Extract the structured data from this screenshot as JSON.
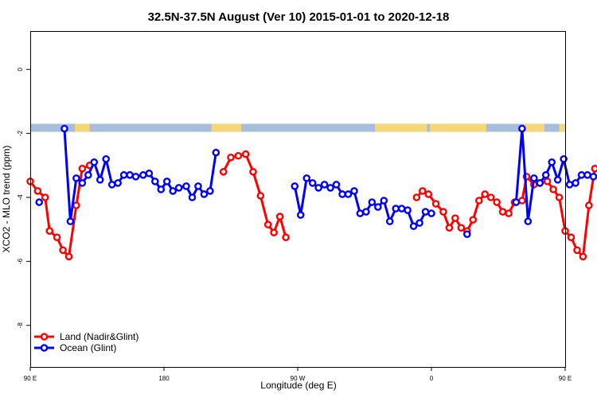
{
  "chart_data": {
    "type": "line",
    "title": "32.5N-37.5N August (Ver 10)   2015-01-01 to 2020-12-18",
    "xlabel": "Longitude (deg E)",
    "ylabel": "XCO2 - MLO trend (ppm)",
    "xlim": [
      90,
      450
    ],
    "ylim": [
      -9.3,
      1.2
    ],
    "x_ticks": [
      {
        "value": 90,
        "label": "90 E"
      },
      {
        "value": 180,
        "label": "180"
      },
      {
        "value": 270,
        "label": "90 W"
      },
      {
        "value": 360,
        "label": "0"
      },
      {
        "value": 450,
        "label": "90 E"
      },
      {
        "value": 540,
        "label": "180"
      }
    ],
    "y_ticks": [
      {
        "value": 0,
        "label": "0"
      },
      {
        "value": -2,
        "label": "-2"
      },
      {
        "value": -4,
        "label": "-4"
      },
      {
        "value": -6,
        "label": "-6"
      },
      {
        "value": -8,
        "label": "-8"
      }
    ],
    "land_band": {
      "y_range": [
        -1.95,
        -1.7
      ],
      "ocean_color": "#a6bddb",
      "land_color": "#f5d77a",
      "land_segments": [
        [
          120,
          130
        ],
        [
          212,
          232
        ],
        [
          322,
          357
        ],
        [
          359,
          397
        ],
        [
          422,
          436
        ],
        [
          446,
          455
        ]
      ]
    },
    "legend": {
      "position": "bottom-left"
    },
    "series": [
      {
        "name": "Land (Nadir&Glint)",
        "color": "#ff0000",
        "segments": [
          [
            [
              90,
              -3.5
            ],
            [
              95,
              -3.8
            ],
            [
              100,
              -4.0
            ],
            [
              103,
              -5.05
            ],
            [
              108,
              -5.25
            ],
            [
              112,
              -5.65
            ],
            [
              116,
              -5.85
            ],
            [
              121,
              -4.25
            ],
            [
              125,
              -3.1
            ],
            [
              130,
              -3.0
            ]
          ],
          [
            [
              220,
              -3.2
            ],
            [
              225,
              -2.75
            ],
            [
              230,
              -2.7
            ],
            [
              235,
              -2.65
            ],
            [
              240,
              -3.2
            ],
            [
              245,
              -3.95
            ],
            [
              250,
              -4.85
            ],
            [
              254,
              -5.1
            ],
            [
              258,
              -4.6
            ],
            [
              262,
              -5.25
            ]
          ],
          [
            [
              350,
              -4.0
            ],
            [
              354,
              -3.8
            ],
            [
              358,
              -3.9
            ],
            [
              363,
              -4.2
            ],
            [
              368,
              -4.45
            ],
            [
              372,
              -4.95
            ],
            [
              376,
              -4.65
            ],
            [
              380,
              -4.95
            ],
            [
              384,
              -5.05
            ],
            [
              388,
              -4.7
            ],
            [
              392,
              -4.1
            ],
            [
              396,
              -3.9
            ],
            [
              400,
              -4.0
            ],
            [
              404,
              -4.15
            ],
            [
              408,
              -4.45
            ],
            [
              412,
              -4.5
            ],
            [
              416,
              -4.15
            ],
            [
              421,
              -4.1
            ],
            [
              424,
              -3.35
            ],
            [
              429,
              -3.6
            ],
            [
              433,
              -3.55
            ],
            [
              438,
              -3.5
            ],
            [
              442,
              -3.75
            ],
            [
              446,
              -4.0
            ],
            [
              450,
              -5.05
            ],
            [
              454,
              -5.25
            ],
            [
              458,
              -5.65
            ],
            [
              462,
              -5.85
            ],
            [
              466,
              -4.25
            ],
            [
              470,
              -3.1
            ],
            [
              474,
              -3.0
            ]
          ]
        ]
      },
      {
        "name": "Ocean (Glint)",
        "color": "#0000ff",
        "segments": [
          [
            [
              96,
              -4.15
            ]
          ],
          [
            [
              113,
              -1.85
            ],
            [
              117,
              -4.75
            ],
            [
              121,
              -3.4
            ],
            [
              125,
              -3.55
            ],
            [
              129,
              -3.3
            ],
            [
              133,
              -2.9
            ],
            [
              137,
              -3.45
            ],
            [
              141,
              -2.8
            ],
            [
              145,
              -3.6
            ],
            [
              149,
              -3.55
            ],
            [
              153,
              -3.3
            ],
            [
              157,
              -3.3
            ],
            [
              161,
              -3.35
            ],
            [
              166,
              -3.3
            ],
            [
              170,
              -3.25
            ],
            [
              174,
              -3.5
            ],
            [
              178,
              -3.75
            ],
            [
              182,
              -3.5
            ],
            [
              186,
              -3.8
            ],
            [
              190,
              -3.7
            ],
            [
              195,
              -3.65
            ],
            [
              199,
              -4.0
            ],
            [
              203,
              -3.65
            ],
            [
              207,
              -3.9
            ],
            [
              211,
              -3.8
            ],
            [
              215,
              -2.6
            ]
          ],
          [
            [
              268,
              -3.65
            ],
            [
              272,
              -4.55
            ],
            [
              276,
              -3.4
            ],
            [
              280,
              -3.55
            ],
            [
              284,
              -3.7
            ],
            [
              288,
              -3.6
            ],
            [
              292,
              -3.7
            ],
            [
              296,
              -3.6
            ],
            [
              300,
              -3.9
            ],
            [
              304,
              -3.9
            ],
            [
              308,
              -3.8
            ],
            [
              312,
              -4.5
            ],
            [
              316,
              -4.45
            ],
            [
              320,
              -4.15
            ],
            [
              324,
              -4.3
            ],
            [
              328,
              -4.1
            ],
            [
              332,
              -4.75
            ],
            [
              336,
              -4.35
            ],
            [
              340,
              -4.35
            ],
            [
              344,
              -4.4
            ],
            [
              348,
              -4.9
            ],
            [
              352,
              -4.8
            ],
            [
              356,
              -4.45
            ],
            [
              360,
              -4.5
            ]
          ],
          [
            [
              384,
              -5.15
            ]
          ],
          [
            [
              417,
              -4.15
            ],
            [
              421,
              -1.85
            ],
            [
              425,
              -4.75
            ],
            [
              429,
              -3.4
            ],
            [
              433,
              -3.55
            ],
            [
              437,
              -3.3
            ],
            [
              441,
              -2.9
            ],
            [
              445,
              -3.45
            ],
            [
              449,
              -2.8
            ],
            [
              453,
              -3.6
            ],
            [
              457,
              -3.55
            ],
            [
              461,
              -3.3
            ],
            [
              465,
              -3.3
            ],
            [
              469,
              -3.35
            ]
          ]
        ]
      }
    ]
  }
}
